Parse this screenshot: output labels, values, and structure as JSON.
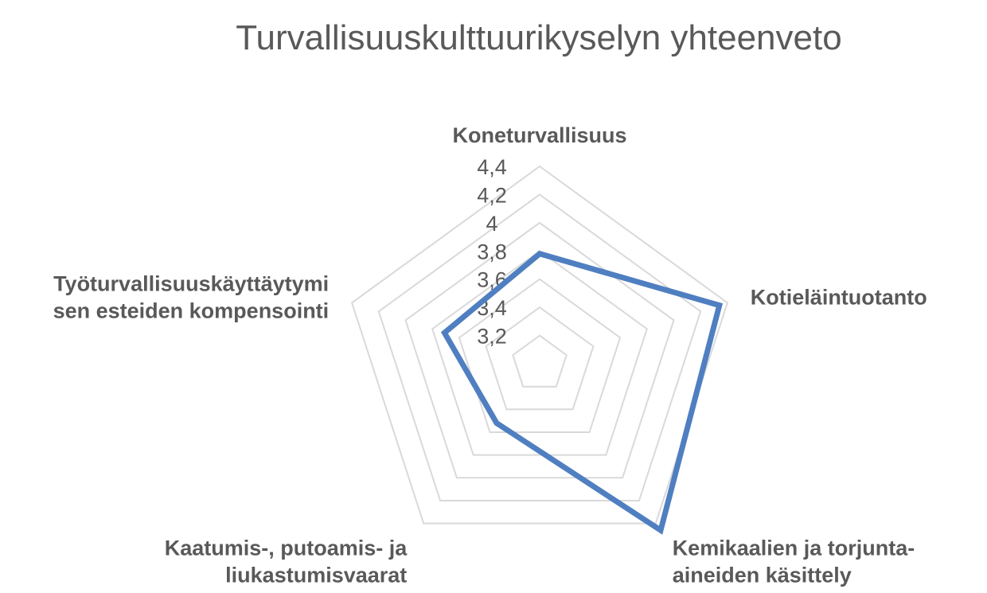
{
  "chart_data": {
    "type": "radar",
    "title": "Turvallisuuskulttuurikyselyn yhteenveto",
    "categories": [
      [
        "Koneturvallisuus"
      ],
      [
        "Kotieläintuotanto"
      ],
      [
        "Kemikaalien ja torjunta-",
        "aineiden käsittely"
      ],
      [
        "Kaatumis-, putoamis- ja",
        "liukastumisvaarat"
      ],
      [
        "Työturvallisuuskäyttäytymi",
        "sen esteiden kompensointi"
      ]
    ],
    "ticks": [
      "3,2",
      "3,4",
      "3,6",
      "3,8",
      "4",
      "4,2",
      "4,4"
    ],
    "rlim": [
      3.0,
      4.4
    ],
    "series": [
      {
        "values": [
          3.78,
          4.34,
          4.46,
          3.52,
          3.71
        ]
      }
    ],
    "colors": {
      "series": "#4f7fc0",
      "grid": "#d9d9d9",
      "text": "#595959"
    },
    "legend": "none"
  }
}
